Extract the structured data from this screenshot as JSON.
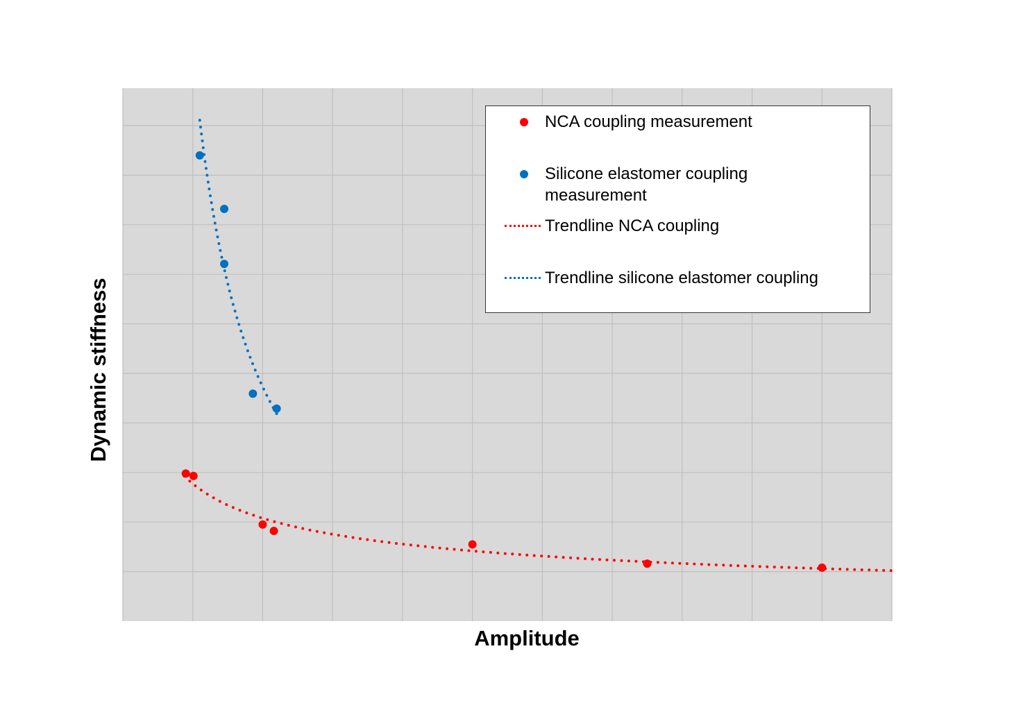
{
  "chart_data": {
    "type": "scatter",
    "title": "",
    "xlabel": "Amplitude",
    "ylabel": "Dynamic stiffness",
    "x_tick_labels": [],
    "y_tick_labels": [],
    "xlim": [
      0,
      11
    ],
    "ylim": [
      0,
      10.75
    ],
    "grid": true,
    "plot_background": "#d9d9d9",
    "legend_position": "upper right (inside plot)",
    "units_note": "No axis tick labels shown; values are in gridline units",
    "series": [
      {
        "name": "NCA coupling measurement",
        "kind": "scatter",
        "color": "#ff0000",
        "x": [
          0.9,
          1.01,
          2.0,
          2.16,
          5.0,
          7.5,
          10.0
        ],
        "y": [
          2.98,
          2.93,
          1.95,
          1.82,
          1.55,
          1.16,
          1.08
        ]
      },
      {
        "name": "Silicone elastomer coupling measurement",
        "kind": "scatter",
        "color": "#0070c0",
        "x": [
          1.1,
          1.45,
          1.45,
          1.86,
          2.2
        ],
        "y": [
          9.4,
          8.32,
          7.21,
          4.59,
          4.29
        ]
      },
      {
        "name": "Trendline NCA coupling",
        "kind": "trendline",
        "style": "dotted",
        "color": "#ff0000",
        "x_range": [
          0.88,
          11.0
        ],
        "y_range": [
          2.85,
          1.0
        ]
      },
      {
        "name": "Trendline silicone elastomer coupling",
        "kind": "trendline",
        "style": "dotted",
        "color": "#0070c0",
        "x_range": [
          1.1,
          2.21
        ],
        "y_range": [
          10.0,
          4.1
        ]
      }
    ]
  },
  "legend": {
    "items": [
      {
        "label_line1": "NCA coupling measurement",
        "label_line2": ""
      },
      {
        "label_line1": "Silicone elastomer coupling",
        "label_line2": "measurement"
      },
      {
        "label_line1": "Trendline NCA coupling",
        "label_line2": ""
      },
      {
        "label_line1": "Trendline silicone elastomer coupling",
        "label_line2": ""
      }
    ]
  },
  "axes": {
    "x_title": "Amplitude",
    "y_title": "Dynamic stiffness"
  }
}
